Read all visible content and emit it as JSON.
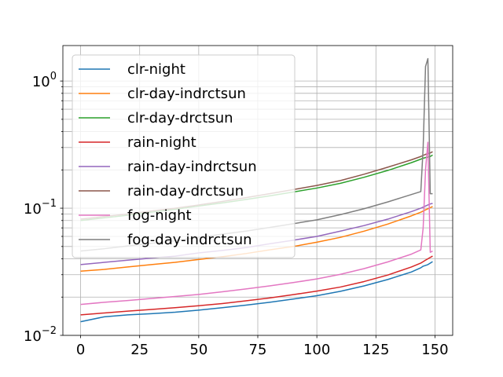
{
  "chart_data": {
    "type": "line",
    "title": "",
    "xlabel": "",
    "ylabel": "",
    "y_scale": "log",
    "xlim": [
      -7.5,
      157.5
    ],
    "ylim": [
      0.01,
      1.9
    ],
    "x_ticks": [
      0,
      25,
      50,
      75,
      100,
      125,
      150
    ],
    "x_tick_labels": [
      "0",
      "25",
      "50",
      "75",
      "100",
      "125",
      "150"
    ],
    "y_ticks": [
      0.01,
      0.1,
      1
    ],
    "y_tick_labels": [
      {
        "base": "10",
        "exp": "−2"
      },
      {
        "base": "10",
        "exp": "−1"
      },
      {
        "base": "10",
        "exp": "0"
      }
    ],
    "grid": true,
    "legend_position": "upper-left",
    "x": [
      0,
      10,
      20,
      30,
      40,
      50,
      60,
      70,
      80,
      90,
      100,
      110,
      120,
      130,
      140,
      144,
      145,
      146,
      147,
      148,
      149
    ],
    "series": [
      {
        "name": "clr-night",
        "color": "#1f77b4",
        "values": [
          0.0128,
          0.014,
          0.0145,
          0.0148,
          0.0152,
          0.0158,
          0.0165,
          0.0173,
          0.0182,
          0.0193,
          0.0205,
          0.0222,
          0.0245,
          0.0275,
          0.0315,
          0.034,
          0.035,
          0.0355,
          0.036,
          0.037,
          0.038
        ]
      },
      {
        "name": "clr-day-indrctsun",
        "color": "#ff7f0e",
        "values": [
          0.032,
          0.033,
          0.0345,
          0.036,
          0.0375,
          0.0395,
          0.0415,
          0.044,
          0.047,
          0.05,
          0.054,
          0.059,
          0.066,
          0.075,
          0.087,
          0.093,
          0.095,
          0.097,
          0.099,
          0.101,
          0.103
        ]
      },
      {
        "name": "clr-day-drctsun",
        "color": "#2ca02c",
        "values": [
          0.08,
          0.084,
          0.088,
          0.093,
          0.098,
          0.104,
          0.11,
          0.117,
          0.125,
          0.134,
          0.144,
          0.157,
          0.175,
          0.198,
          0.228,
          0.243,
          0.247,
          0.25,
          0.252,
          0.255,
          0.262
        ]
      },
      {
        "name": "rain-night",
        "color": "#d62728",
        "values": [
          0.0145,
          0.015,
          0.0155,
          0.016,
          0.0165,
          0.0171,
          0.0178,
          0.0187,
          0.0197,
          0.0209,
          0.0223,
          0.024,
          0.0265,
          0.0298,
          0.0345,
          0.037,
          0.038,
          0.039,
          0.04,
          0.041,
          0.042
        ]
      },
      {
        "name": "rain-day-indrctsun",
        "color": "#9467bd",
        "values": [
          0.036,
          0.0375,
          0.039,
          0.0405,
          0.042,
          0.0445,
          0.0465,
          0.049,
          0.0525,
          0.056,
          0.06,
          0.066,
          0.073,
          0.082,
          0.094,
          0.1,
          0.102,
          0.104,
          0.106,
          0.108,
          0.109
        ]
      },
      {
        "name": "rain-day-drctsun",
        "color": "#8c564b",
        "values": [
          0.082,
          0.086,
          0.09,
          0.095,
          0.1,
          0.106,
          0.113,
          0.121,
          0.13,
          0.14,
          0.151,
          0.165,
          0.185,
          0.21,
          0.24,
          0.255,
          0.26,
          0.265,
          0.268,
          0.272,
          0.278
        ]
      },
      {
        "name": "fog-night",
        "color": "#e377c2",
        "values": [
          0.0175,
          0.0182,
          0.0188,
          0.0195,
          0.0202,
          0.021,
          0.022,
          0.0232,
          0.0245,
          0.026,
          0.0278,
          0.0302,
          0.0335,
          0.0378,
          0.0435,
          0.047,
          0.07,
          0.2,
          0.33,
          0.045,
          0.046
        ]
      },
      {
        "name": "fog-day-indrctsun",
        "color": "#7f7f7f",
        "values": [
          0.046,
          0.048,
          0.0505,
          0.053,
          0.0555,
          0.059,
          0.0625,
          0.066,
          0.0705,
          0.0755,
          0.081,
          0.089,
          0.099,
          0.112,
          0.128,
          0.135,
          0.3,
          1.3,
          1.5,
          0.13,
          0.13
        ]
      }
    ]
  }
}
